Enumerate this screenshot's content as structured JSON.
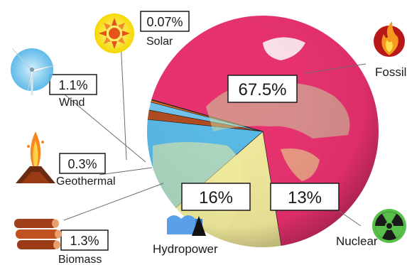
{
  "chart_data": {
    "type": "pie",
    "title": "",
    "slices": [
      {
        "name": "Fossil",
        "value": 67.5,
        "value_label": "67.5%",
        "color": "#e8306e"
      },
      {
        "name": "Hydropower",
        "value": 16,
        "value_label": "16%",
        "color": "#f0e89a"
      },
      {
        "name": "Nuclear",
        "value": 13,
        "value_label": "13%",
        "color": "#58b8e6"
      },
      {
        "name": "Biomass",
        "value": 1.3,
        "value_label": "1.3%",
        "color": "#b04a1e"
      },
      {
        "name": "Wind",
        "value": 1.1,
        "value_label": "1.1%",
        "color": "#6fc3ea"
      },
      {
        "name": "Geothermal",
        "value": 0.3,
        "value_label": "0.3%",
        "color": "#e86a1a"
      },
      {
        "name": "Solar",
        "value": 0.07,
        "value_label": "0.07%",
        "color": "#f5d800"
      }
    ]
  },
  "labels": {
    "fossil": "Fossil",
    "nuclear": "Nuclear",
    "hydropower": "Hydropower",
    "biomass": "Biomass",
    "geothermal": "Geothermal",
    "wind": "Wind",
    "solar": "Solar"
  },
  "icons": [
    "flame-icon",
    "radiation-icon",
    "water-wave-icon",
    "log-pile-icon",
    "volcano-icon",
    "wind-turbine-icon",
    "sun-icon"
  ]
}
